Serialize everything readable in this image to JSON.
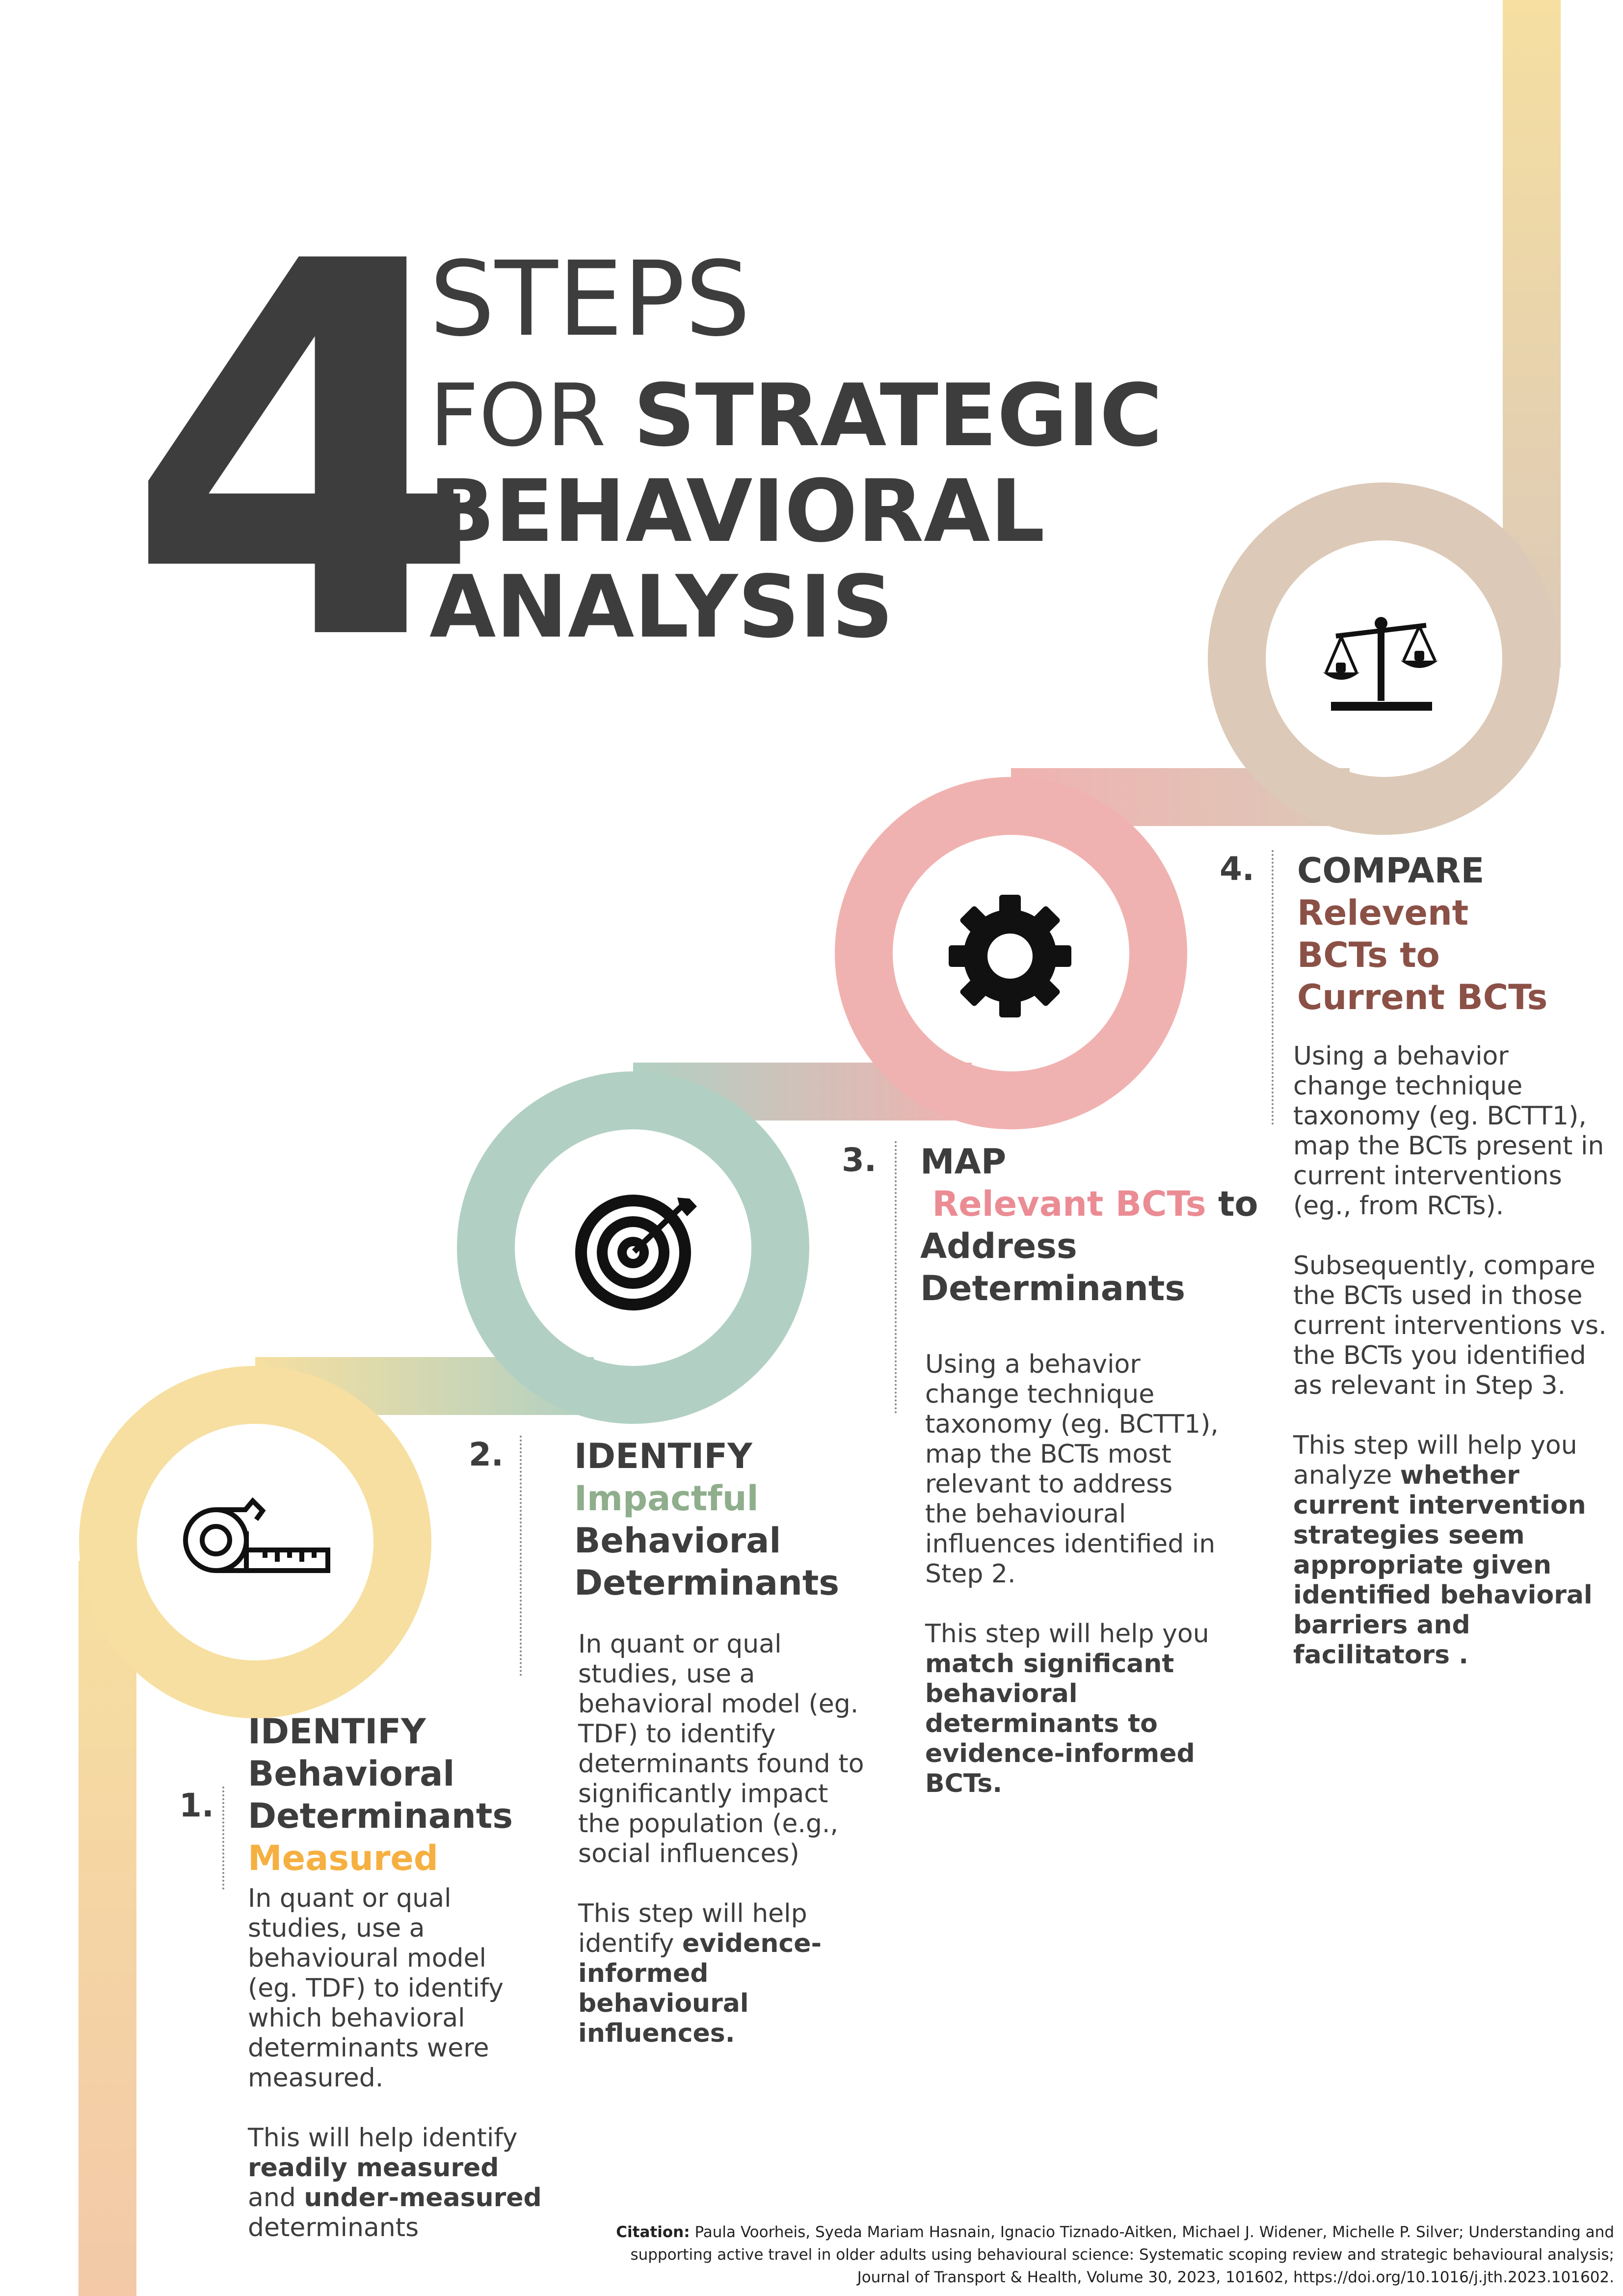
{
  "title": {
    "number": "4",
    "line1": "STEPS",
    "line2_light": "FOR",
    "line2_bold": "STRATEGIC",
    "line3": "BEHAVIORAL",
    "line4": "ANALYSIS"
  },
  "colors": {
    "yellow": "#f6dfa0",
    "peach": "#f3c9a8",
    "green": "#b1d0c3",
    "pink": "#f0b2b0",
    "tan": "#dcc9b8",
    "accent_orange": "#f5b041",
    "accent_green": "#8fae8c",
    "accent_pink": "#eb8c94",
    "accent_brown": "#8b5046",
    "text": "#3d3d3d"
  },
  "icons": {
    "step1": "tape-measure-icon",
    "step2": "target-icon",
    "step3": "gear-icon",
    "step4": "scales-icon"
  },
  "steps": [
    {
      "number": "1.",
      "head_line1": "IDENTIFY",
      "head_line2": "Behavioral",
      "head_line3": "Determinants",
      "head_accent": "Measured",
      "body_p1": "In quant or qual studies, use a behavioural model (eg. TDF) to identify which behavioral determinants were measured.",
      "body_p2_pre": "This will help identify ",
      "body_p2_bold1": "readily measured",
      "body_p2_mid": " and ",
      "body_p2_bold2": "under-measured",
      "body_p2_post": " determinants"
    },
    {
      "number": "2.",
      "head_line1": "IDENTIFY",
      "head_accent": "Impactful",
      "head_line3": "Behavioral",
      "head_line4": "Determinants",
      "body_p1": "In quant or qual studies, use a behavioral model (eg. TDF) to identify determinants found to significantly impact the population (e.g., social influences)",
      "body_p2_pre": "This step will help identify ",
      "body_p2_bold": "evidence-informed behavioural influences."
    },
    {
      "number": "3.",
      "head_line1": "MAP",
      "head_accent": "Relevant BCTs",
      "head_line2_post": " to",
      "head_line3": "Address",
      "head_line4": "Determinants",
      "body_p1": "Using a behavior change technique taxonomy (eg. BCTT1), map the BCTs most relevant to address the behavioural influences identified in Step 2.",
      "body_p2_pre": "This step will help you ",
      "body_p2_bold": "match significant behavioral determinants to evidence-informed BCTs."
    },
    {
      "number": "4.",
      "head_line1": "COMPARE",
      "head_accent_line1": "Relevent",
      "head_accent_line2": "BCTs to",
      "head_accent_line3": "Current BCTs",
      "body_p1": "Using a behavior change technique taxonomy (eg. BCTT1), map the BCTs present in current interventions (eg., from RCTs).",
      "body_p2": "Subsequently, compare the BCTs used in those  current interventions vs. the BCTs you identified as relevant in Step 3.",
      "body_p3_pre": "This step will help you analyze ",
      "body_p3_bold": "whether current intervention strategies seem appropriate given identified behavioral barriers and facilitators ."
    }
  ],
  "citation": {
    "label": "Citation:",
    "text": " Paula Voorheis, Syeda Mariam Hasnain, Ignacio Tiznado-Aitken, Michael J. Widener, Michelle P. Silver; Understanding and supporting active travel in older adults using behavioural science: Systematic scoping review and strategic behavioural analysis; Journal of Transport & Health, Volume 30, 2023, 101602, https://doi.org/10.1016/j.jth.2023.101602."
  }
}
